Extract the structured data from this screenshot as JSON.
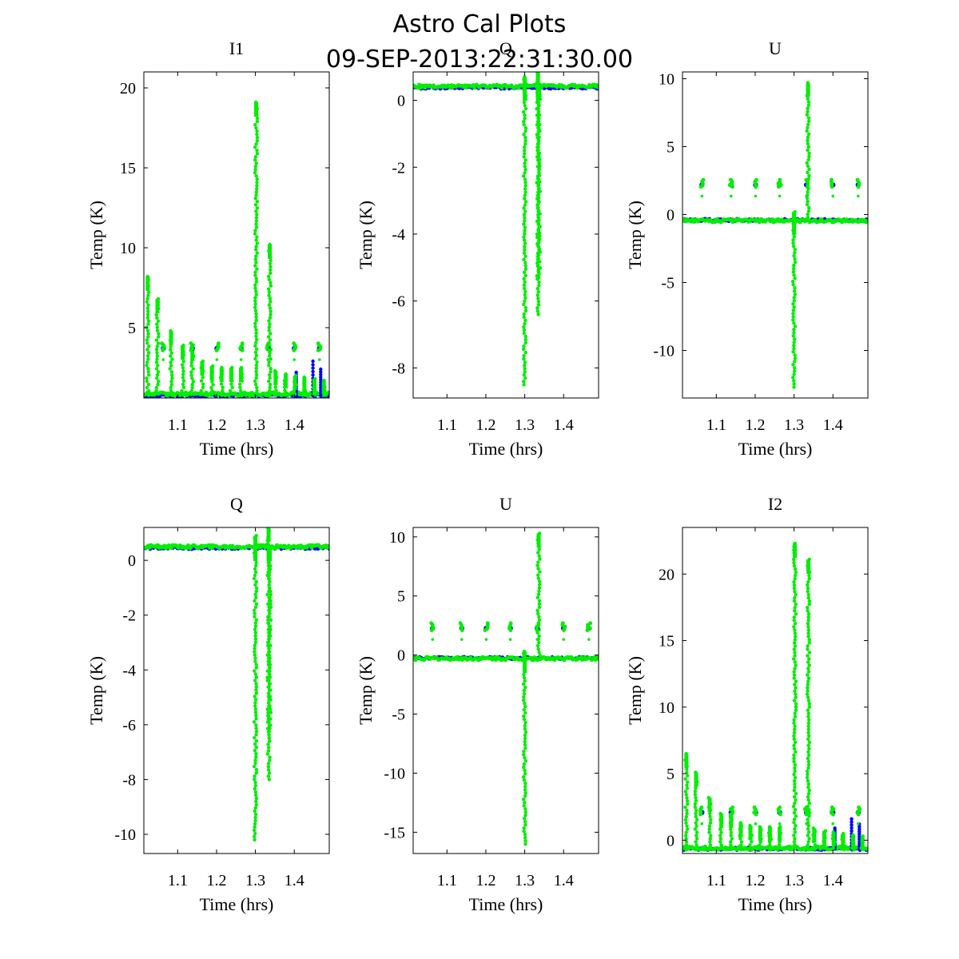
{
  "figure": {
    "title_line1": "Astro Cal Plots",
    "title_line2": "09-SEP-2013:22:31:30.00"
  },
  "colors": {
    "series_a": "#0000ff",
    "series_b": "#00ee00"
  },
  "chart_data": [
    {
      "type": "scatter",
      "title": "I1",
      "xlabel": "Time (hrs)",
      "ylabel": "Temp (K)",
      "xlim": [
        1.013,
        1.49
      ],
      "ylim": [
        0.6,
        21
      ],
      "xticks": [
        1.1,
        1.2,
        1.3,
        1.4
      ],
      "yticks": [
        5,
        10,
        15,
        20
      ],
      "baseline": 0.85,
      "blue_baseline": 0.75,
      "spikes": [
        [
          1.023,
          8.2
        ],
        [
          1.048,
          6.8
        ],
        [
          1.083,
          4.8
        ],
        [
          1.113,
          3.9
        ],
        [
          1.138,
          3.8
        ],
        [
          1.163,
          2.9
        ],
        [
          1.188,
          2.6
        ],
        [
          1.213,
          2.5
        ],
        [
          1.238,
          2.5
        ],
        [
          1.263,
          2.5
        ],
        [
          1.302,
          19.1
        ],
        [
          1.337,
          10.2
        ],
        [
          1.352,
          2.3
        ],
        [
          1.378,
          2.1
        ],
        [
          1.402,
          2.0
        ],
        [
          1.426,
          1.9
        ],
        [
          1.452,
          1.8
        ],
        [
          1.476,
          1.7
        ]
      ],
      "blue_spikes": [
        [
          1.405,
          2.2
        ],
        [
          1.448,
          2.9
        ],
        [
          1.468,
          2.4
        ]
      ],
      "blobs": [
        [
          1.063,
          3.8
        ],
        [
          1.138,
          3.8
        ],
        [
          1.201,
          3.8
        ],
        [
          1.263,
          3.8
        ],
        [
          1.332,
          3.8
        ],
        [
          1.4,
          3.8
        ],
        [
          1.465,
          3.8
        ]
      ]
    },
    {
      "type": "scatter",
      "title": "Q",
      "xlabel": "Time (hrs)",
      "ylabel": "Temp (K)",
      "xlim": [
        1.013,
        1.49
      ],
      "ylim": [
        -8.9,
        0.85
      ],
      "xticks": [
        1.1,
        1.2,
        1.3,
        1.4
      ],
      "yticks": [
        -8,
        -6,
        -4,
        -2,
        0
      ],
      "baseline": 0.42,
      "blue_baseline": 0.38,
      "spikes": [
        [
          1.3,
          -8.5
        ],
        [
          1.3,
          0.7
        ],
        [
          1.334,
          -6.4
        ],
        [
          1.334,
          0.85
        ],
        [
          1.337,
          -5.3
        ]
      ],
      "blue_spikes": [],
      "blobs": []
    },
    {
      "type": "scatter",
      "title": "U",
      "xlabel": "Time (hrs)",
      "ylabel": "Temp (K)",
      "xlim": [
        1.013,
        1.49
      ],
      "ylim": [
        -13.5,
        10.5
      ],
      "xticks": [
        1.1,
        1.2,
        1.3,
        1.4
      ],
      "yticks": [
        -10,
        -5,
        0,
        5,
        10
      ],
      "baseline": -0.45,
      "blue_baseline": -0.4,
      "spikes": [
        [
          1.3,
          -12.7
        ],
        [
          1.336,
          9.7
        ],
        [
          1.3,
          0.2
        ]
      ],
      "blue_spikes": [],
      "blobs": [
        [
          1.063,
          2.3
        ],
        [
          1.138,
          2.3
        ],
        [
          1.201,
          2.3
        ],
        [
          1.263,
          2.3
        ],
        [
          1.332,
          2.3
        ],
        [
          1.4,
          2.3
        ],
        [
          1.465,
          2.3
        ]
      ]
    },
    {
      "type": "scatter",
      "title": "Q",
      "xlabel": "Time (hrs)",
      "ylabel": "Temp (K)",
      "xlim": [
        1.013,
        1.49
      ],
      "ylim": [
        -10.7,
        1.2
      ],
      "xticks": [
        1.1,
        1.2,
        1.3,
        1.4
      ],
      "yticks": [
        -10,
        -8,
        -6,
        -4,
        -2,
        0
      ],
      "baseline": 0.5,
      "blue_baseline": 0.45,
      "spikes": [
        [
          1.3,
          -10.2
        ],
        [
          1.3,
          0.9
        ],
        [
          1.334,
          -8.0
        ],
        [
          1.334,
          1.2
        ],
        [
          1.337,
          -6.6
        ]
      ],
      "blue_spikes": [],
      "blobs": []
    },
    {
      "type": "scatter",
      "title": "U",
      "xlabel": "Time (hrs)",
      "ylabel": "Temp (K)",
      "xlim": [
        1.013,
        1.49
      ],
      "ylim": [
        -16.8,
        10.8
      ],
      "xticks": [
        1.1,
        1.2,
        1.3,
        1.4
      ],
      "yticks": [
        -15,
        -10,
        -5,
        0,
        5,
        10
      ],
      "baseline": -0.3,
      "blue_baseline": -0.25,
      "spikes": [
        [
          1.3,
          -16.0
        ],
        [
          1.336,
          10.3
        ],
        [
          1.3,
          0.3
        ]
      ],
      "blue_spikes": [],
      "blobs": [
        [
          1.063,
          2.4
        ],
        [
          1.138,
          2.4
        ],
        [
          1.201,
          2.4
        ],
        [
          1.263,
          2.4
        ],
        [
          1.332,
          2.4
        ],
        [
          1.4,
          2.4
        ],
        [
          1.465,
          2.4
        ]
      ]
    },
    {
      "type": "scatter",
      "title": "I2",
      "xlabel": "Time (hrs)",
      "ylabel": "Temp (K)",
      "xlim": [
        1.013,
        1.49
      ],
      "ylim": [
        -1.0,
        23.5
      ],
      "xticks": [
        1.1,
        1.2,
        1.3,
        1.4
      ],
      "yticks": [
        0,
        5,
        10,
        15,
        20
      ],
      "baseline": -0.6,
      "blue_baseline": -0.65,
      "spikes": [
        [
          1.023,
          6.5
        ],
        [
          1.048,
          5.1
        ],
        [
          1.083,
          3.2
        ],
        [
          1.113,
          2.0
        ],
        [
          1.138,
          2.0
        ],
        [
          1.163,
          1.3
        ],
        [
          1.188,
          1.1
        ],
        [
          1.213,
          1.0
        ],
        [
          1.238,
          1.0
        ],
        [
          1.263,
          1.0
        ],
        [
          1.302,
          22.3
        ],
        [
          1.337,
          21.1
        ],
        [
          1.352,
          0.9
        ],
        [
          1.378,
          0.7
        ],
        [
          1.402,
          0.6
        ],
        [
          1.426,
          0.5
        ],
        [
          1.452,
          0.4
        ],
        [
          1.476,
          0.3
        ]
      ],
      "blue_spikes": [
        [
          1.405,
          0.9
        ],
        [
          1.448,
          1.6
        ],
        [
          1.468,
          1.2
        ]
      ],
      "blobs": [
        [
          1.063,
          2.2
        ],
        [
          1.138,
          2.2
        ],
        [
          1.201,
          2.2
        ],
        [
          1.263,
          2.2
        ],
        [
          1.332,
          2.2
        ],
        [
          1.4,
          2.2
        ],
        [
          1.465,
          2.2
        ]
      ]
    }
  ]
}
